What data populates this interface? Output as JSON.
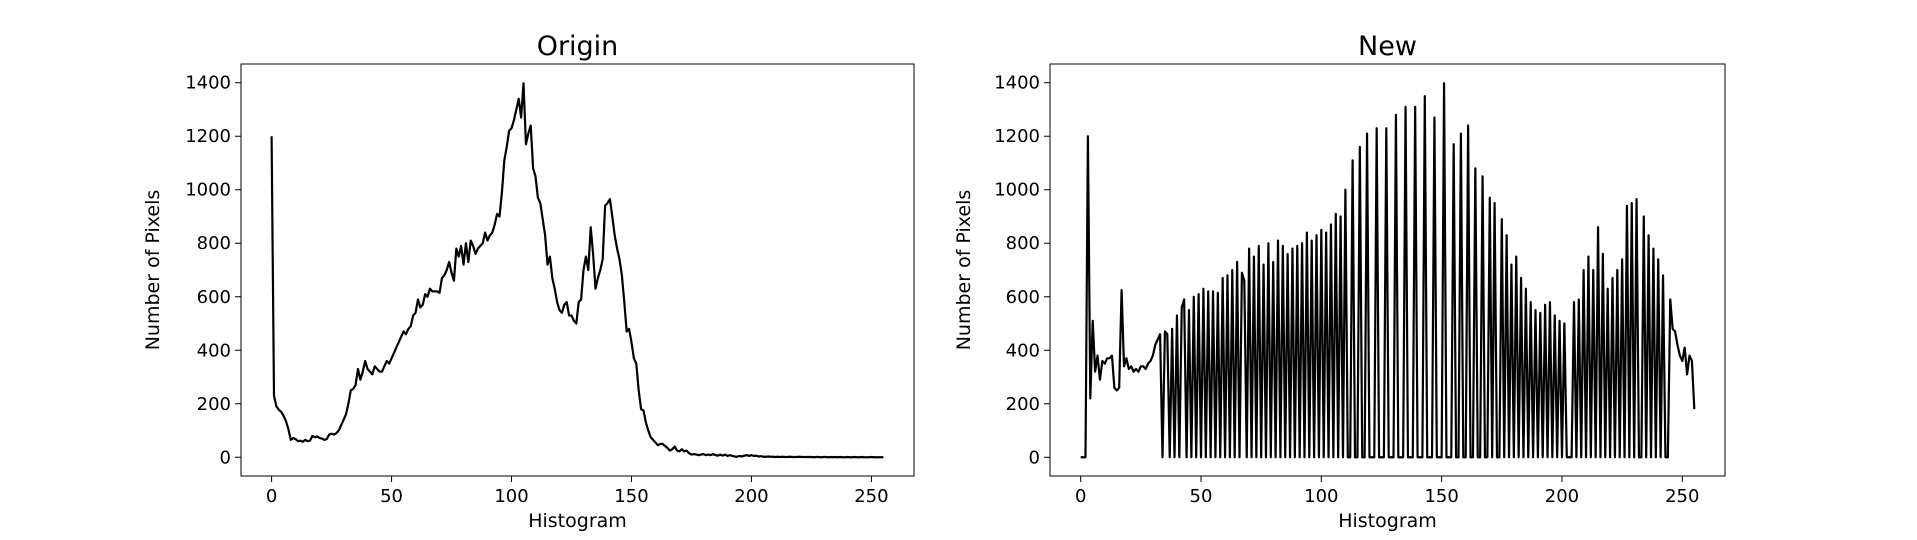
{
  "chart_data": [
    {
      "type": "line",
      "title": "Origin",
      "x_label": "Histogram",
      "y_label": "Number of Pixels",
      "color": "#000000",
      "xlim": [
        -12.75,
        267.75
      ],
      "ylim": [
        -70,
        1470
      ],
      "xticks": [
        0,
        50,
        100,
        150,
        200,
        250
      ],
      "yticks": [
        0,
        200,
        400,
        600,
        800,
        1000,
        1200,
        1400
      ],
      "x": [
        0,
        1,
        2,
        3,
        4,
        5,
        6,
        7,
        8,
        9,
        10,
        11,
        12,
        13,
        14,
        15,
        16,
        17,
        18,
        19,
        20,
        21,
        22,
        23,
        24,
        25,
        26,
        27,
        28,
        29,
        30,
        31,
        32,
        33,
        34,
        35,
        36,
        37,
        38,
        39,
        40,
        41,
        42,
        43,
        44,
        45,
        46,
        47,
        48,
        49,
        50,
        51,
        52,
        53,
        54,
        55,
        56,
        57,
        58,
        59,
        60,
        61,
        62,
        63,
        64,
        65,
        66,
        67,
        68,
        69,
        70,
        71,
        72,
        73,
        74,
        75,
        76,
        77,
        78,
        79,
        80,
        81,
        82,
        83,
        84,
        85,
        86,
        87,
        88,
        89,
        90,
        91,
        92,
        93,
        94,
        95,
        96,
        97,
        98,
        99,
        100,
        101,
        102,
        103,
        104,
        105,
        106,
        107,
        108,
        109,
        110,
        111,
        112,
        113,
        114,
        115,
        116,
        117,
        118,
        119,
        120,
        121,
        122,
        123,
        124,
        125,
        126,
        127,
        128,
        129,
        130,
        131,
        132,
        133,
        134,
        135,
        136,
        137,
        138,
        139,
        140,
        141,
        142,
        143,
        144,
        145,
        146,
        147,
        148,
        149,
        150,
        151,
        152,
        153,
        154,
        155,
        156,
        157,
        158,
        159,
        160,
        161,
        162,
        163,
        164,
        165,
        166,
        167,
        168,
        169,
        170,
        171,
        172,
        173,
        174,
        175,
        176,
        177,
        178,
        179,
        180,
        181,
        182,
        183,
        184,
        185,
        186,
        187,
        188,
        189,
        190,
        191,
        192,
        193,
        194,
        195,
        196,
        197,
        198,
        199,
        200,
        201,
        202,
        203,
        204,
        205,
        206,
        207,
        208,
        209,
        210,
        211,
        212,
        213,
        214,
        215,
        216,
        217,
        218,
        219,
        220,
        221,
        222,
        223,
        224,
        225,
        226,
        227,
        228,
        229,
        230,
        231,
        232,
        233,
        234,
        235,
        236,
        237,
        238,
        239,
        240,
        241,
        242,
        243,
        244,
        245,
        246,
        247,
        248,
        249,
        250,
        251,
        252,
        253,
        254,
        255
      ],
      "values": [
        1200,
        230,
        190,
        178,
        170,
        155,
        135,
        105,
        65,
        72,
        68,
        60,
        62,
        58,
        65,
        60,
        62,
        80,
        75,
        78,
        72,
        70,
        65,
        68,
        85,
        88,
        85,
        90,
        100,
        120,
        140,
        160,
        200,
        250,
        255,
        270,
        330,
        290,
        320,
        360,
        330,
        320,
        310,
        340,
        330,
        320,
        320,
        340,
        360,
        350,
        370,
        390,
        410,
        430,
        450,
        470,
        460,
        480,
        490,
        530,
        540,
        590,
        560,
        570,
        610,
        600,
        630,
        620,
        620,
        620,
        615,
        670,
        680,
        700,
        730,
        690,
        660,
        780,
        750,
        790,
        720,
        800,
        730,
        810,
        790,
        760,
        780,
        790,
        800,
        840,
        810,
        830,
        840,
        870,
        910,
        900,
        990,
        1110,
        1160,
        1220,
        1230,
        1260,
        1300,
        1340,
        1270,
        1398,
        1170,
        1210,
        1240,
        1080,
        1050,
        970,
        950,
        890,
        830,
        720,
        750,
        670,
        630,
        580,
        550,
        540,
        570,
        580,
        530,
        530,
        510,
        500,
        580,
        590,
        700,
        750,
        700,
        860,
        760,
        630,
        670,
        700,
        740,
        940,
        950,
        965,
        900,
        830,
        780,
        740,
        680,
        580,
        470,
        480,
        430,
        370,
        350,
        250,
        180,
        175,
        130,
        100,
        75,
        65,
        55,
        45,
        50,
        50,
        42,
        35,
        25,
        30,
        40,
        25,
        22,
        30,
        22,
        25,
        15,
        10,
        12,
        10,
        8,
        10,
        12,
        8,
        10,
        8,
        12,
        8,
        6,
        10,
        6,
        10,
        5,
        8,
        5,
        3,
        2,
        5,
        3,
        6,
        8,
        5,
        8,
        5,
        6,
        3,
        4,
        2,
        2,
        3,
        2,
        2,
        1,
        2,
        1,
        2,
        1,
        1,
        2,
        1,
        1,
        1,
        2,
        1,
        1,
        1,
        1,
        1,
        0,
        1,
        1,
        0,
        1,
        1,
        0,
        1,
        0,
        1,
        0,
        1,
        0,
        0,
        1,
        0,
        0,
        1,
        0,
        0,
        1,
        0,
        0,
        0,
        1,
        0,
        0,
        0,
        0,
        0
      ]
    },
    {
      "type": "line",
      "title": "New",
      "x_label": "Histogram",
      "y_label": "Number of Pixels",
      "color": "#000000",
      "xlim": [
        -12.75,
        267.75
      ],
      "ylim": [
        -70,
        1470
      ],
      "xticks": [
        0,
        50,
        100,
        150,
        200,
        250
      ],
      "yticks": [
        0,
        200,
        400,
        600,
        800,
        1000,
        1200,
        1400
      ],
      "x": [
        0,
        1,
        2,
        3,
        4,
        5,
        6,
        7,
        8,
        9,
        10,
        11,
        12,
        13,
        14,
        15,
        16,
        17,
        18,
        19,
        20,
        21,
        22,
        23,
        24,
        25,
        26,
        27,
        28,
        29,
        30,
        31,
        32,
        33,
        34,
        35,
        36,
        37,
        38,
        39,
        40,
        41,
        42,
        43,
        44,
        45,
        46,
        47,
        48,
        49,
        50,
        51,
        52,
        53,
        54,
        55,
        56,
        57,
        58,
        59,
        60,
        61,
        62,
        63,
        64,
        65,
        66,
        67,
        68,
        69,
        70,
        71,
        72,
        73,
        74,
        75,
        76,
        77,
        78,
        79,
        80,
        81,
        82,
        83,
        84,
        85,
        86,
        87,
        88,
        89,
        90,
        91,
        92,
        93,
        94,
        95,
        96,
        97,
        98,
        99,
        100,
        101,
        102,
        103,
        104,
        105,
        106,
        107,
        108,
        109,
        110,
        111,
        112,
        113,
        114,
        115,
        116,
        117,
        118,
        119,
        120,
        121,
        122,
        123,
        124,
        125,
        126,
        127,
        128,
        129,
        130,
        131,
        132,
        133,
        134,
        135,
        136,
        137,
        138,
        139,
        140,
        141,
        142,
        143,
        144,
        145,
        146,
        147,
        148,
        149,
        150,
        151,
        152,
        153,
        154,
        155,
        156,
        157,
        158,
        159,
        160,
        161,
        162,
        163,
        164,
        165,
        166,
        167,
        168,
        169,
        170,
        171,
        172,
        173,
        174,
        175,
        176,
        177,
        178,
        179,
        180,
        181,
        182,
        183,
        184,
        185,
        186,
        187,
        188,
        189,
        190,
        191,
        192,
        193,
        194,
        195,
        196,
        197,
        198,
        199,
        200,
        201,
        202,
        203,
        204,
        205,
        206,
        207,
        208,
        209,
        210,
        211,
        212,
        213,
        214,
        215,
        216,
        217,
        218,
        219,
        220,
        221,
        222,
        223,
        224,
        225,
        226,
        227,
        228,
        229,
        230,
        231,
        232,
        233,
        234,
        235,
        236,
        237,
        238,
        239,
        240,
        241,
        242,
        243,
        244,
        245,
        246,
        247,
        248,
        249,
        250,
        251,
        252,
        253,
        254,
        255
      ],
      "values": [
        0,
        0,
        0,
        1200,
        220,
        510,
        320,
        380,
        290,
        360,
        350,
        370,
        370,
        380,
        260,
        250,
        260,
        625,
        340,
        370,
        330,
        340,
        320,
        330,
        320,
        340,
        340,
        330,
        350,
        360,
        380,
        420,
        440,
        460,
        0,
        470,
        460,
        0,
        480,
        0,
        530,
        0,
        560,
        590,
        0,
        550,
        0,
        600,
        0,
        610,
        0,
        630,
        0,
        620,
        0,
        620,
        0,
        615,
        0,
        670,
        0,
        680,
        0,
        700,
        0,
        730,
        0,
        690,
        660,
        0,
        780,
        0,
        750,
        0,
        790,
        0,
        720,
        0,
        800,
        0,
        730,
        0,
        810,
        0,
        790,
        0,
        760,
        0,
        780,
        0,
        790,
        0,
        800,
        0,
        840,
        0,
        810,
        0,
        830,
        0,
        850,
        0,
        840,
        0,
        870,
        0,
        910,
        0,
        900,
        0,
        1000,
        0,
        0,
        1110,
        0,
        0,
        1160,
        0,
        0,
        1210,
        0,
        0,
        0,
        1230,
        0,
        0,
        0,
        1230,
        0,
        0,
        0,
        1280,
        0,
        0,
        0,
        1310,
        0,
        0,
        0,
        1310,
        0,
        0,
        0,
        1350,
        0,
        0,
        0,
        1270,
        0,
        0,
        0,
        1398,
        0,
        0,
        0,
        1170,
        0,
        0,
        1210,
        0,
        0,
        1240,
        0,
        0,
        1080,
        0,
        0,
        1050,
        0,
        0,
        970,
        0,
        950,
        0,
        0,
        890,
        0,
        830,
        0,
        720,
        0,
        750,
        0,
        670,
        0,
        630,
        0,
        580,
        0,
        550,
        0,
        540,
        0,
        570,
        0,
        580,
        0,
        530,
        0,
        510,
        0,
        500,
        0,
        0,
        0,
        580,
        0,
        590,
        0,
        700,
        0,
        750,
        0,
        700,
        0,
        860,
        0,
        760,
        0,
        630,
        0,
        670,
        0,
        700,
        0,
        740,
        0,
        940,
        0,
        950,
        0,
        965,
        0,
        0,
        900,
        0,
        830,
        0,
        780,
        0,
        740,
        0,
        680,
        0,
        0,
        590,
        480,
        470,
        420,
        380,
        360,
        410,
        310,
        380,
        360,
        180
      ]
    }
  ]
}
